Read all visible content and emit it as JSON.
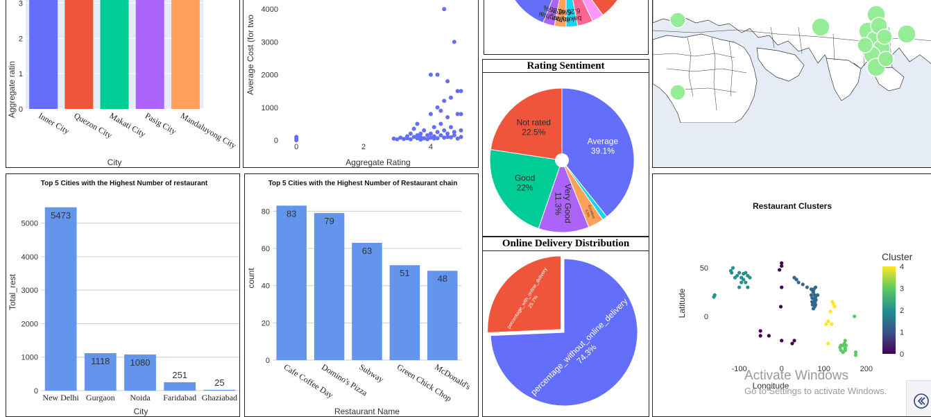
{
  "panels": {
    "city_rating": {
      "ylabel": "Aggregate ratin",
      "xlabel": "City"
    },
    "cost_rating": {
      "ylabel": "Average Cost (for two",
      "xlabel": "Aggregate Rating"
    },
    "top_cities": {
      "title": "Top 5 Cities with the Highest Number of restaurant",
      "ylabel": "Total_rest",
      "xlabel": "City"
    },
    "top_chains": {
      "title": "Top 5 Cities with the Highest Number of Restaurant chain",
      "ylabel": "count",
      "xlabel": "Restaurant Name"
    },
    "rating_sentiment": {
      "title": "Rating Sentiment"
    },
    "online_delivery": {
      "title": "Online Delivery Distribution"
    },
    "clusters": {
      "title": "Restaurant Clusters",
      "xlabel": "Longitude",
      "ylabel": "Latitude",
      "colorbar_title": "Cluster"
    }
  },
  "watermark": {
    "line1": "Activate Windows",
    "line2": "Go to Settings to activate Windows."
  },
  "chart_data": [
    {
      "id": "city_rating",
      "type": "bar",
      "categories": [
        "Inner City",
        "Quezon City",
        "Makati City",
        "Pasig City",
        "Mandaluyong City"
      ],
      "values": [
        4.5,
        4.5,
        4.5,
        4.5,
        4.5
      ],
      "colors": [
        "#636efa",
        "#ef553b",
        "#00cc96",
        "#ab63fa",
        "#ffa15a"
      ],
      "ylim": [
        0,
        3.5
      ],
      "yticks": [
        0,
        1,
        2,
        3
      ]
    },
    {
      "id": "cost_rating",
      "type": "scatter",
      "xlim": [
        -0.5,
        5.2
      ],
      "ylim": [
        -400,
        4300
      ],
      "xticks": [
        0,
        2,
        4
      ],
      "yticks": [
        0,
        1000,
        2000,
        3000,
        4000
      ],
      "color": "#636efa",
      "points": [
        [
          0,
          50
        ],
        [
          0,
          100
        ],
        [
          0,
          0
        ],
        [
          2.9,
          50
        ],
        [
          3,
          30
        ],
        [
          3.1,
          80
        ],
        [
          3.2,
          40
        ],
        [
          3.3,
          60
        ],
        [
          3.3,
          120
        ],
        [
          3.4,
          200
        ],
        [
          3.4,
          30
        ],
        [
          3.5,
          100
        ],
        [
          3.5,
          350
        ],
        [
          3.6,
          60
        ],
        [
          3.6,
          150
        ],
        [
          3.6,
          500
        ],
        [
          3.7,
          20
        ],
        [
          3.7,
          200
        ],
        [
          3.7,
          90
        ],
        [
          3.8,
          300
        ],
        [
          3.8,
          60
        ],
        [
          3.9,
          150
        ],
        [
          3.9,
          30
        ],
        [
          4.0,
          2000
        ],
        [
          4.0,
          80
        ],
        [
          4.0,
          200
        ],
        [
          4.0,
          800
        ],
        [
          4.1,
          50
        ],
        [
          4.1,
          400
        ],
        [
          4.1,
          120
        ],
        [
          4.2,
          1000
        ],
        [
          4.2,
          2000
        ],
        [
          4.2,
          250
        ],
        [
          4.2,
          60
        ],
        [
          4.3,
          900
        ],
        [
          4.3,
          150
        ],
        [
          4.3,
          500
        ],
        [
          4.4,
          1200
        ],
        [
          4.4,
          80
        ],
        [
          4.4,
          300
        ],
        [
          4.4,
          4000
        ],
        [
          4.5,
          1800
        ],
        [
          4.5,
          700
        ],
        [
          4.5,
          100
        ],
        [
          4.5,
          200
        ],
        [
          4.6,
          1300
        ],
        [
          4.6,
          400
        ],
        [
          4.6,
          90
        ],
        [
          4.7,
          3000
        ],
        [
          4.7,
          250
        ],
        [
          4.7,
          150
        ],
        [
          4.8,
          1500
        ],
        [
          4.8,
          800
        ],
        [
          4.8,
          50
        ],
        [
          4.9,
          1500
        ],
        [
          4.9,
          300
        ],
        [
          4.9,
          100
        ],
        [
          4.9,
          800
        ]
      ]
    },
    {
      "id": "top_cities",
      "type": "bar",
      "categories": [
        "New Delhi",
        "Gurgaon",
        "Noida",
        "Faridabad",
        "Ghaziabad"
      ],
      "values": [
        5473,
        1118,
        1080,
        251,
        25
      ],
      "color": "#6495ed",
      "ylim": [
        0,
        5800
      ],
      "yticks": [
        0,
        1000,
        2000,
        3000,
        4000,
        5000
      ]
    },
    {
      "id": "top_chains",
      "type": "bar",
      "categories": [
        "Cafe Coffee Day",
        "Domino's Pizza",
        "Subway",
        "Green Chick Chop",
        "McDonald's"
      ],
      "values": [
        83,
        79,
        63,
        51,
        48
      ],
      "color": "#6495ed",
      "ylim": [
        0,
        85
      ],
      "yticks": [
        0,
        20,
        40,
        60,
        80
      ]
    },
    {
      "id": "rating_sentiment",
      "type": "pie",
      "slices": [
        {
          "label": "Average",
          "value": 39.1,
          "text": "39.1%",
          "color": "#636efa"
        },
        {
          "label": "Excellent",
          "value": 1.1,
          "text": "",
          "color": "#19d3f3"
        },
        {
          "label": "Excellent",
          "value": 3.5,
          "text": "3.5%",
          "color": "#ffa15a"
        },
        {
          "label": "Very Good",
          "value": 11.3,
          "text": "11.3%",
          "color": "#ab63fa"
        },
        {
          "label": "Good",
          "value": 22,
          "text": "22%",
          "color": "#00cc96"
        },
        {
          "label": "Not rated",
          "value": 22.5,
          "text": "22.5%",
          "color": "#ef553b"
        }
      ]
    },
    {
      "id": "online_delivery",
      "type": "pie",
      "slices": [
        {
          "label": "percentage_without_online_delivery",
          "value": 74.3,
          "text": "74.3%",
          "color": "#636efa"
        },
        {
          "label": "percentage_with_online_delivery",
          "value": 25.7,
          "text": "25.7%",
          "color": "#ef553b"
        }
      ]
    },
    {
      "id": "cuisine_pie_partial",
      "type": "pie",
      "visible_slices": [
        {
          "label": "mughlai",
          "text": "8.35%",
          "color": "#ab63fa"
        },
        {
          "label": "italian",
          "text": "6.41%",
          "color": "#ffa15a"
        },
        {
          "label": "bakery",
          "text": "6.25%",
          "color": "#19d3f3"
        }
      ]
    },
    {
      "id": "clusters",
      "type": "scatter",
      "xlim": [
        -160,
        220
      ],
      "ylim": [
        -48,
        68
      ],
      "xticks": [
        -100,
        0,
        100,
        200
      ],
      "yticks": [
        0,
        50
      ],
      "colorbar_ticks": [
        0,
        1,
        2,
        3,
        4
      ],
      "groups": [
        {
          "cluster": 0,
          "color": "#440154",
          "points": [
            [
              0,
              55
            ],
            [
              0,
              52
            ],
            [
              -5,
              48
            ],
            [
              0,
              30
            ],
            [
              -2,
              10
            ],
            [
              -50,
              -15
            ],
            [
              -50,
              -20
            ],
            [
              -30,
              -20
            ],
            [
              30,
              -25
            ],
            [
              25,
              -28
            ],
            [
              0,
              -25
            ]
          ]
        },
        {
          "cluster": 1,
          "color": "#31688e",
          "points": [
            [
              30,
              40
            ],
            [
              35,
              38
            ],
            [
              40,
              35
            ],
            [
              50,
              33
            ],
            [
              60,
              30
            ],
            [
              70,
              28
            ],
            [
              75,
              25
            ],
            [
              78,
              22
            ],
            [
              80,
              20
            ],
            [
              77,
              18
            ],
            [
              72,
              15
            ],
            [
              80,
              12
            ],
            [
              78,
              10
            ],
            [
              75,
              8
            ],
            [
              80,
              30
            ],
            [
              70,
              22
            ],
            [
              85,
              22
            ],
            [
              72,
              19
            ],
            [
              76,
              28
            ],
            [
              74,
              26
            ],
            [
              79,
              15
            ],
            [
              73,
              12
            ],
            [
              81,
              17
            ],
            [
              77,
              13
            ]
          ]
        },
        {
          "cluster": 2,
          "color": "#21918c",
          "points": [
            [
              -120,
              47
            ],
            [
              -118,
              45
            ],
            [
              -115,
              50
            ],
            [
              -110,
              40
            ],
            [
              -105,
              42
            ],
            [
              -100,
              45
            ],
            [
              -95,
              40
            ],
            [
              -90,
              38
            ],
            [
              -85,
              35
            ],
            [
              -80,
              42
            ],
            [
              -75,
              40
            ],
            [
              -100,
              30
            ],
            [
              -95,
              35
            ],
            [
              -85,
              45
            ],
            [
              -90,
              44
            ],
            [
              -80,
              30
            ],
            [
              -160,
              20
            ],
            [
              -158,
              22
            ]
          ]
        },
        {
          "cluster": 3,
          "color": "#5ec962",
          "points": [
            [
              150,
              -25
            ],
            [
              145,
              -30
            ],
            [
              150,
              -33
            ],
            [
              145,
              -37
            ],
            [
              150,
              -35
            ],
            [
              140,
              -35
            ],
            [
              175,
              -37
            ],
            [
              175,
              -40
            ],
            [
              140,
              -30
            ],
            [
              148,
              -28
            ],
            [
              152,
              -30
            ],
            [
              172,
              0
            ],
            [
              138,
              -32
            ]
          ]
        },
        {
          "cluster": 4,
          "color": "#fde725",
          "points": [
            [
              120,
              15
            ],
            [
              115,
              5
            ],
            [
              110,
              -5
            ],
            [
              105,
              -8
            ],
            [
              125,
              10
            ],
            [
              122,
              13
            ],
            [
              118,
              -8
            ],
            [
              110,
              -28
            ]
          ]
        }
      ]
    }
  ]
}
